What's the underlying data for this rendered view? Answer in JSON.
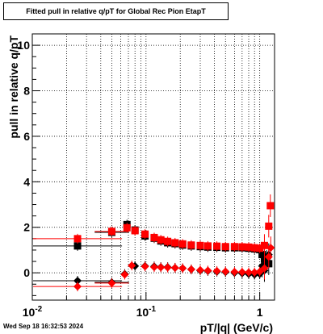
{
  "chart_data": {
    "type": "scatter",
    "title": "Fitted pull in relative q/pT for Global Rec Pion EtapT",
    "xlabel": "pT/|q| (GeV/c)",
    "ylabel": "pull in relative q/pT",
    "xscale": "log",
    "xlim": [
      0.01,
      1.35
    ],
    "ylim": [
      -1.2,
      10.5
    ],
    "grid": true,
    "x_ticks": [
      {
        "value": 0.01,
        "base": "10",
        "exp": "-2"
      },
      {
        "value": 0.1,
        "base": "10",
        "exp": "-1"
      },
      {
        "value": 1,
        "base": "1",
        "exp": ""
      }
    ],
    "y_ticks": [
      "0",
      "2",
      "4",
      "6",
      "8",
      "10"
    ],
    "series": [
      {
        "color": "#000000",
        "marker": "square",
        "points": [
          [
            0.025,
            1.18
          ],
          [
            0.05,
            1.78
          ],
          [
            0.068,
            2.12
          ],
          [
            0.08,
            1.88
          ],
          [
            0.098,
            1.62
          ],
          [
            0.118,
            1.52
          ],
          [
            0.135,
            1.4
          ],
          [
            0.155,
            1.32
          ],
          [
            0.18,
            1.28
          ],
          [
            0.21,
            1.22
          ],
          [
            0.25,
            1.18
          ],
          [
            0.3,
            1.15
          ],
          [
            0.35,
            1.13
          ],
          [
            0.42,
            1.12
          ],
          [
            0.5,
            1.1
          ],
          [
            0.6,
            1.1
          ],
          [
            0.7,
            1.1
          ],
          [
            0.8,
            1.08
          ],
          [
            0.9,
            1.05
          ],
          [
            1.0,
            1.02
          ],
          [
            1.05,
            0.8
          ],
          [
            1.1,
            0.6
          ],
          [
            1.15,
            0.5
          ],
          [
            1.2,
            0.4
          ]
        ]
      },
      {
        "color": "#ff0000",
        "marker": "square",
        "points": [
          [
            0.025,
            1.5
          ],
          [
            0.05,
            1.82
          ],
          [
            0.068,
            1.98
          ],
          [
            0.08,
            1.85
          ],
          [
            0.098,
            1.7
          ],
          [
            0.118,
            1.55
          ],
          [
            0.135,
            1.45
          ],
          [
            0.155,
            1.38
          ],
          [
            0.18,
            1.32
          ],
          [
            0.21,
            1.27
          ],
          [
            0.25,
            1.22
          ],
          [
            0.3,
            1.2
          ],
          [
            0.35,
            1.18
          ],
          [
            0.42,
            1.17
          ],
          [
            0.5,
            1.15
          ],
          [
            0.6,
            1.15
          ],
          [
            0.7,
            1.14
          ],
          [
            0.8,
            1.13
          ],
          [
            0.9,
            1.1
          ],
          [
            1.0,
            1.08
          ],
          [
            1.1,
            1.2
          ],
          [
            1.2,
            2.05
          ],
          [
            1.24,
            2.95
          ]
        ]
      },
      {
        "color": "#000000",
        "marker": "diamond",
        "points": [
          [
            0.025,
            -0.35
          ],
          [
            0.05,
            -0.42
          ],
          [
            0.065,
            -0.05
          ],
          [
            0.08,
            0.3
          ],
          [
            0.098,
            0.3
          ],
          [
            0.118,
            0.28
          ],
          [
            0.135,
            0.25
          ],
          [
            0.155,
            0.25
          ],
          [
            0.18,
            0.22
          ],
          [
            0.21,
            0.2
          ],
          [
            0.25,
            0.15
          ],
          [
            0.3,
            0.1
          ],
          [
            0.35,
            0.08
          ],
          [
            0.42,
            0.05
          ],
          [
            0.5,
            0.03
          ],
          [
            0.6,
            0.0
          ],
          [
            0.7,
            -0.02
          ],
          [
            0.8,
            -0.05
          ],
          [
            0.9,
            -0.08
          ],
          [
            1.0,
            -0.05
          ],
          [
            1.05,
            0.3
          ],
          [
            1.1,
            0.1
          ],
          [
            1.2,
            0.8
          ]
        ]
      },
      {
        "color": "#ff0000",
        "marker": "diamond",
        "points": [
          [
            0.025,
            -0.6
          ],
          [
            0.05,
            -0.45
          ],
          [
            0.065,
            -0.08
          ],
          [
            0.075,
            0.32
          ],
          [
            0.098,
            0.28
          ],
          [
            0.118,
            0.25
          ],
          [
            0.135,
            0.24
          ],
          [
            0.155,
            0.23
          ],
          [
            0.18,
            0.22
          ],
          [
            0.21,
            0.2
          ],
          [
            0.25,
            0.15
          ],
          [
            0.3,
            0.12
          ],
          [
            0.35,
            0.1
          ],
          [
            0.42,
            0.08
          ],
          [
            0.5,
            0.06
          ],
          [
            0.6,
            0.04
          ],
          [
            0.7,
            0.03
          ],
          [
            0.8,
            0.02
          ],
          [
            0.9,
            0.02
          ],
          [
            1.0,
            0.05
          ],
          [
            1.1,
            0.2
          ],
          [
            1.2,
            0.7
          ],
          [
            1.25,
            1.1
          ]
        ]
      }
    ],
    "timestamp": "Wed Sep 18 16:32:53 2024"
  }
}
